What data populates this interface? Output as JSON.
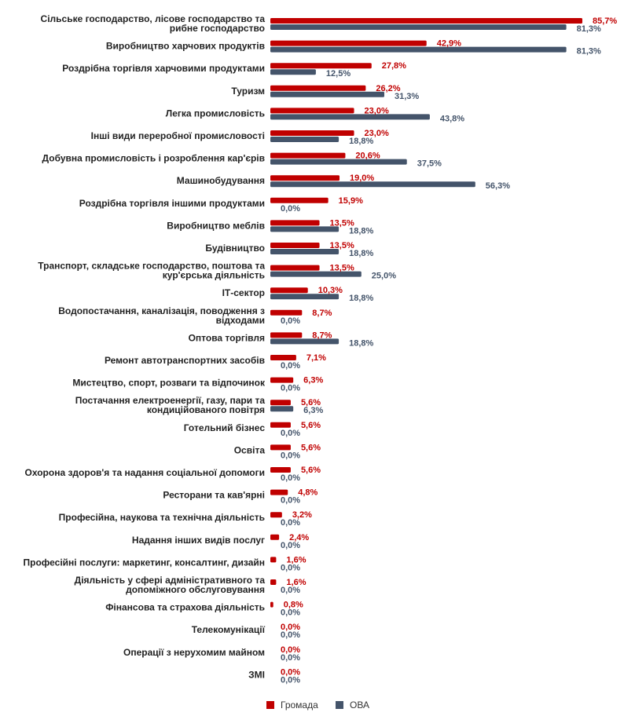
{
  "chart_data": {
    "type": "bar",
    "orientation": "horizontal",
    "categories": [
      "Сільське господарство, лісове господарство та рибне господарство",
      "Виробництво харчових продуктів",
      "Роздрібна торгівля харчовими продуктами",
      "Туризм",
      "Легка промисловість",
      "Інші види переробної промисловості",
      "Добувна промисловість і розроблення кар'єрів",
      "Машинобудування",
      "Роздрібна торгівля іншими продуктами",
      "Виробництво меблів",
      "Будівництво",
      "Транспорт, складське господарство, поштова та кур'єрська діяльність",
      "ІТ-сектор",
      "Водопостачання, каналізація, поводження з відходами",
      "Оптова торгівля",
      "Ремонт автотранспортних засобів",
      "Мистецтво, спорт, розваги та відпочинок",
      "Постачання електроенергії, газу, пари та кондиційованого повітря",
      "Готельний бізнес",
      "Освіта",
      "Охорона здоров'я та надання соціальної допомоги",
      "Ресторани та кав'ярні",
      "Професійна, наукова та технічна діяльність",
      "Надання інших видів послуг",
      "Професійні послуги: маркетинг, консалтинг, дизайн",
      "Діяльність у сфері адміністративного та допоміжного обслуговування",
      "Фінансова та страхова діяльність",
      "Телекомунікації",
      "Операції з нерухомим майном",
      "ЗМІ"
    ],
    "category_lines": [
      [
        "Сільське господарство, лісове господарство та",
        "рибне господарство"
      ],
      [
        "Виробництво харчових продуктів"
      ],
      [
        "Роздрібна торгівля харчовими продуктами"
      ],
      [
        "Туризм"
      ],
      [
        "Легка промисловість"
      ],
      [
        "Інші види переробної промисловості"
      ],
      [
        "Добувна промисловість і розроблення кар'єрів"
      ],
      [
        "Машинобудування"
      ],
      [
        "Роздрібна торгівля іншими продуктами"
      ],
      [
        "Виробництво меблів"
      ],
      [
        "Будівництво"
      ],
      [
        "Транспорт, складське господарство, поштова та",
        "кур'єрська діяльність"
      ],
      [
        "ІТ-сектор"
      ],
      [
        "Водопостачання, каналізація, поводження з",
        "відходами"
      ],
      [
        "Оптова торгівля"
      ],
      [
        "Ремонт автотранспортних засобів"
      ],
      [
        "Мистецтво, спорт, розваги та відпочинок"
      ],
      [
        "Постачання електроенергії, газу, пари та",
        "кондиційованого повітря"
      ],
      [
        "Готельний бізнес"
      ],
      [
        "Освіта"
      ],
      [
        "Охорона здоров'я та надання соціальної допомоги"
      ],
      [
        "Ресторани та кав'ярні"
      ],
      [
        "Професійна, наукова та технічна діяльність"
      ],
      [
        "Надання інших видів послуг"
      ],
      [
        "Професійні послуги: маркетинг, консалтинг, дизайн"
      ],
      [
        "Діяльність у сфері адміністративного та",
        "допоміжного обслуговування"
      ],
      [
        "Фінансова та страхова діяльність"
      ],
      [
        "Телекомунікації"
      ],
      [
        "Операції з нерухомим майном"
      ],
      [
        "ЗМІ"
      ]
    ],
    "series": [
      {
        "name": "Громада",
        "color": "#c00000",
        "values": [
          85.7,
          42.9,
          27.8,
          26.2,
          23.0,
          23.0,
          20.6,
          19.0,
          15.9,
          13.5,
          13.5,
          13.5,
          10.3,
          8.7,
          8.7,
          7.1,
          6.3,
          5.6,
          5.6,
          5.6,
          5.6,
          4.8,
          3.2,
          2.4,
          1.6,
          1.6,
          0.8,
          0.0,
          0.0,
          0.0
        ],
        "labels": [
          "85,7%",
          "42,9%",
          "27,8%",
          "26,2%",
          "23,0%",
          "23,0%",
          "20,6%",
          "19,0%",
          "15,9%",
          "13,5%",
          "13,5%",
          "13,5%",
          "10,3%",
          "8,7%",
          "8,7%",
          "7,1%",
          "6,3%",
          "5,6%",
          "5,6%",
          "5,6%",
          "5,6%",
          "4,8%",
          "3,2%",
          "2,4%",
          "1,6%",
          "1,6%",
          "0,8%",
          "0,0%",
          "0,0%",
          "0,0%"
        ]
      },
      {
        "name": "ОВА",
        "color": "#44546a",
        "values": [
          81.3,
          81.3,
          12.5,
          31.3,
          43.8,
          18.8,
          37.5,
          56.3,
          0.0,
          18.8,
          18.8,
          25.0,
          18.8,
          0.0,
          18.8,
          0.0,
          0.0,
          6.3,
          0.0,
          0.0,
          0.0,
          0.0,
          0.0,
          0.0,
          0.0,
          0.0,
          0.0,
          0.0,
          0.0,
          0.0
        ],
        "labels": [
          "81,3%",
          "81,3%",
          "12,5%",
          "31,3%",
          "43,8%",
          "18,8%",
          "37,5%",
          "56,3%",
          "0,0%",
          "18,8%",
          "18,8%",
          "25,0%",
          "18,8%",
          "0,0%",
          "18,8%",
          "0,0%",
          "0,0%",
          "6,3%",
          "0,0%",
          "0,0%",
          "0,0%",
          "0,0%",
          "0,0%",
          "0,0%",
          "0,0%",
          "0,0%",
          "0,0%",
          "0,0%",
          "0,0%",
          "0,0%"
        ]
      }
    ],
    "xlim": [
      0,
      100
    ],
    "grid": false,
    "legend": "bottom-center",
    "title": "",
    "xlabel": "",
    "ylabel": ""
  }
}
